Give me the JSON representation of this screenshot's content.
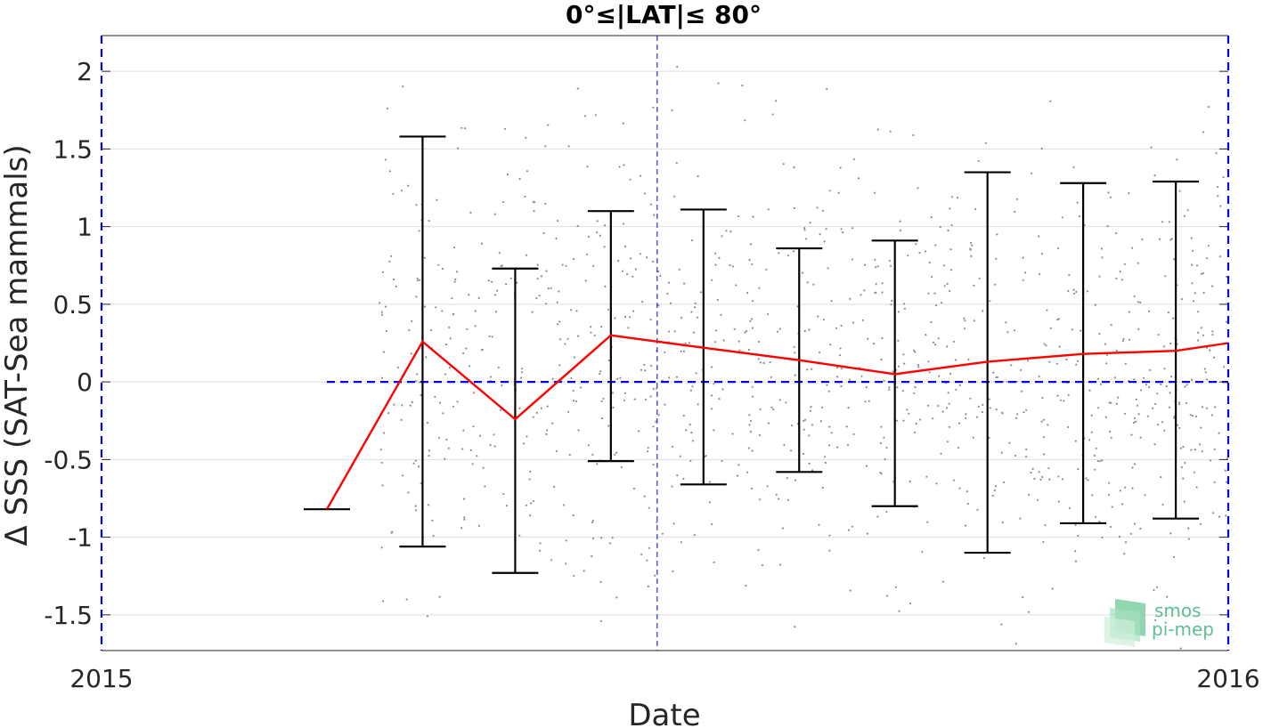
{
  "chart_data": {
    "type": "line",
    "title": "0°≤|LAT|≤ 80°",
    "xlabel": "Date",
    "ylabel": "Δ SSS (SAT-Sea mammals)",
    "xlim": [
      "2015-01-01",
      "2016-01-01"
    ],
    "ylim": [
      -1.73,
      2.23
    ],
    "x_ticks": [
      "2015-01-01",
      "2016-01-01"
    ],
    "x_tick_labels": [
      "2015",
      "2016"
    ],
    "y_ticks": [
      -1.5,
      -1,
      -0.5,
      0,
      0.5,
      1,
      1.5,
      2
    ],
    "y_tick_labels": [
      "-1.5",
      "-1",
      "-0.5",
      "0",
      "0.5",
      "1",
      "1.5",
      "2"
    ],
    "grid": "horizontal",
    "zero_line": {
      "y": 0,
      "x_start": "2015-03-15",
      "x_end": "2016-01-01",
      "color": "#0000ee",
      "style": "dashed"
    },
    "vertical_marker": {
      "x": "2015-06-30",
      "color": "#0000ee",
      "style": "dashed"
    },
    "series": [
      {
        "type": "errorbar",
        "color": "#ff0000",
        "whisker_color": "#000000",
        "points": [
          {
            "x": "2015-03-15",
            "mean": -0.82,
            "low": -0.82,
            "high": -0.82
          },
          {
            "x": "2015-04-15",
            "mean": 0.26,
            "low": -1.06,
            "high": 1.58
          },
          {
            "x": "2015-05-15",
            "mean": -0.24,
            "low": -1.23,
            "high": 0.73
          },
          {
            "x": "2015-06-15",
            "mean": 0.3,
            "low": -0.51,
            "high": 1.1
          },
          {
            "x": "2015-07-15",
            "mean": 0.22,
            "low": -0.66,
            "high": 1.11
          },
          {
            "x": "2015-08-15",
            "mean": 0.14,
            "low": -0.58,
            "high": 0.86
          },
          {
            "x": "2015-09-15",
            "mean": 0.05,
            "low": -0.8,
            "high": 0.91
          },
          {
            "x": "2015-10-15",
            "mean": 0.13,
            "low": -1.1,
            "high": 1.35
          },
          {
            "x": "2015-11-15",
            "mean": 0.18,
            "low": -0.91,
            "high": 1.28
          },
          {
            "x": "2015-12-15",
            "mean": 0.2,
            "low": -0.88,
            "high": 1.29
          },
          {
            "x": "2016-01-01",
            "mean": 0.25
          }
        ]
      }
    ],
    "scatter_background": {
      "color": "#8c8c8c",
      "description_x_range": [
        "2015-04-01",
        "2016-01-01"
      ]
    }
  },
  "logo": {
    "line1": "smos",
    "line2": "pi-mep"
  }
}
